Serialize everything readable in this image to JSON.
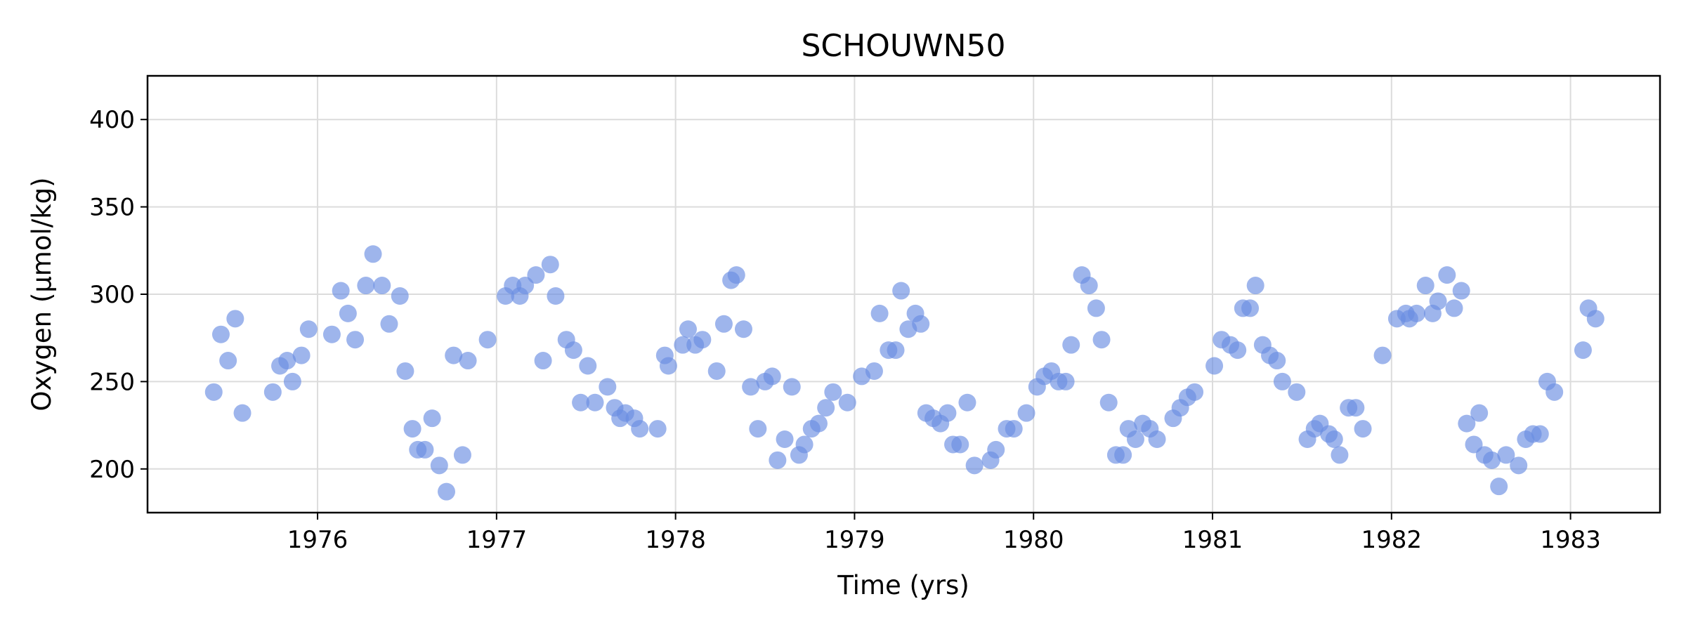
{
  "chart_data": {
    "type": "scatter",
    "title": "SCHOUWN50",
    "xlabel": "Time (yrs)",
    "ylabel": "Oxygen (µmol/kg)",
    "xlim": [
      1975.05,
      1983.5
    ],
    "ylim": [
      175,
      425
    ],
    "xticks": [
      1976,
      1977,
      1978,
      1979,
      1980,
      1981,
      1982,
      1983
    ],
    "xtick_labels": [
      "1976",
      "1977",
      "1978",
      "1979",
      "1980",
      "1981",
      "1982",
      "1983"
    ],
    "yticks": [
      200,
      250,
      300,
      350,
      400
    ],
    "ytick_labels": [
      "200",
      "250",
      "300",
      "350",
      "400"
    ],
    "grid": true,
    "marker_color": "#6a8ee2",
    "marker_opacity": 0.65,
    "points": [
      [
        1975.42,
        244
      ],
      [
        1975.46,
        277
      ],
      [
        1975.5,
        262
      ],
      [
        1975.54,
        286
      ],
      [
        1975.58,
        232
      ],
      [
        1975.75,
        244
      ],
      [
        1975.79,
        259
      ],
      [
        1975.83,
        262
      ],
      [
        1975.86,
        250
      ],
      [
        1975.91,
        265
      ],
      [
        1975.95,
        280
      ],
      [
        1976.08,
        277
      ],
      [
        1976.13,
        302
      ],
      [
        1976.17,
        289
      ],
      [
        1976.21,
        274
      ],
      [
        1976.27,
        305
      ],
      [
        1976.31,
        323
      ],
      [
        1976.36,
        305
      ],
      [
        1976.4,
        283
      ],
      [
        1976.46,
        299
      ],
      [
        1976.49,
        256
      ],
      [
        1976.53,
        223
      ],
      [
        1976.56,
        211
      ],
      [
        1976.6,
        211
      ],
      [
        1976.64,
        229
      ],
      [
        1976.68,
        202
      ],
      [
        1976.72,
        187
      ],
      [
        1976.76,
        265
      ],
      [
        1976.81,
        208
      ],
      [
        1976.84,
        262
      ],
      [
        1976.95,
        274
      ],
      [
        1977.05,
        299
      ],
      [
        1977.09,
        305
      ],
      [
        1977.13,
        299
      ],
      [
        1977.16,
        305
      ],
      [
        1977.22,
        311
      ],
      [
        1977.26,
        262
      ],
      [
        1977.3,
        317
      ],
      [
        1977.33,
        299
      ],
      [
        1977.39,
        274
      ],
      [
        1977.43,
        268
      ],
      [
        1977.47,
        238
      ],
      [
        1977.51,
        259
      ],
      [
        1977.55,
        238
      ],
      [
        1977.62,
        247
      ],
      [
        1977.66,
        235
      ],
      [
        1977.69,
        229
      ],
      [
        1977.72,
        232
      ],
      [
        1977.77,
        229
      ],
      [
        1977.8,
        223
      ],
      [
        1977.9,
        223
      ],
      [
        1977.94,
        265
      ],
      [
        1977.96,
        259
      ],
      [
        1978.04,
        271
      ],
      [
        1978.07,
        280
      ],
      [
        1978.11,
        271
      ],
      [
        1978.15,
        274
      ],
      [
        1978.23,
        256
      ],
      [
        1978.27,
        283
      ],
      [
        1978.31,
        308
      ],
      [
        1978.34,
        311
      ],
      [
        1978.38,
        280
      ],
      [
        1978.42,
        247
      ],
      [
        1978.46,
        223
      ],
      [
        1978.5,
        250
      ],
      [
        1978.54,
        253
      ],
      [
        1978.57,
        205
      ],
      [
        1978.61,
        217
      ],
      [
        1978.65,
        247
      ],
      [
        1978.69,
        208
      ],
      [
        1978.72,
        214
      ],
      [
        1978.76,
        223
      ],
      [
        1978.8,
        226
      ],
      [
        1978.84,
        235
      ],
      [
        1978.88,
        244
      ],
      [
        1978.96,
        238
      ],
      [
        1979.04,
        253
      ],
      [
        1979.11,
        256
      ],
      [
        1979.14,
        289
      ],
      [
        1979.19,
        268
      ],
      [
        1979.23,
        268
      ],
      [
        1979.26,
        302
      ],
      [
        1979.3,
        280
      ],
      [
        1979.34,
        289
      ],
      [
        1979.37,
        283
      ],
      [
        1979.4,
        232
      ],
      [
        1979.44,
        229
      ],
      [
        1979.48,
        226
      ],
      [
        1979.52,
        232
      ],
      [
        1979.55,
        214
      ],
      [
        1979.59,
        214
      ],
      [
        1979.63,
        238
      ],
      [
        1979.67,
        202
      ],
      [
        1979.76,
        205
      ],
      [
        1979.79,
        211
      ],
      [
        1979.85,
        223
      ],
      [
        1979.89,
        223
      ],
      [
        1979.96,
        232
      ],
      [
        1980.02,
        247
      ],
      [
        1980.06,
        253
      ],
      [
        1980.1,
        256
      ],
      [
        1980.14,
        250
      ],
      [
        1980.18,
        250
      ],
      [
        1980.21,
        271
      ],
      [
        1980.27,
        311
      ],
      [
        1980.31,
        305
      ],
      [
        1980.35,
        292
      ],
      [
        1980.38,
        274
      ],
      [
        1980.42,
        238
      ],
      [
        1980.46,
        208
      ],
      [
        1980.5,
        208
      ],
      [
        1980.53,
        223
      ],
      [
        1980.57,
        217
      ],
      [
        1980.61,
        226
      ],
      [
        1980.65,
        223
      ],
      [
        1980.69,
        217
      ],
      [
        1980.78,
        229
      ],
      [
        1980.82,
        235
      ],
      [
        1980.86,
        241
      ],
      [
        1980.9,
        244
      ],
      [
        1981.01,
        259
      ],
      [
        1981.05,
        274
      ],
      [
        1981.1,
        271
      ],
      [
        1981.14,
        268
      ],
      [
        1981.17,
        292
      ],
      [
        1981.21,
        292
      ],
      [
        1981.24,
        305
      ],
      [
        1981.28,
        271
      ],
      [
        1981.32,
        265
      ],
      [
        1981.36,
        262
      ],
      [
        1981.39,
        250
      ],
      [
        1981.47,
        244
      ],
      [
        1981.53,
        217
      ],
      [
        1981.57,
        223
      ],
      [
        1981.6,
        226
      ],
      [
        1981.65,
        220
      ],
      [
        1981.68,
        217
      ],
      [
        1981.71,
        208
      ],
      [
        1981.76,
        235
      ],
      [
        1981.8,
        235
      ],
      [
        1981.84,
        223
      ],
      [
        1981.95,
        265
      ],
      [
        1982.03,
        286
      ],
      [
        1982.08,
        289
      ],
      [
        1982.1,
        286
      ],
      [
        1982.14,
        289
      ],
      [
        1982.19,
        305
      ],
      [
        1982.23,
        289
      ],
      [
        1982.26,
        296
      ],
      [
        1982.31,
        311
      ],
      [
        1982.35,
        292
      ],
      [
        1982.39,
        302
      ],
      [
        1982.42,
        226
      ],
      [
        1982.46,
        214
      ],
      [
        1982.49,
        232
      ],
      [
        1982.52,
        208
      ],
      [
        1982.56,
        205
      ],
      [
        1982.6,
        190
      ],
      [
        1982.64,
        208
      ],
      [
        1982.71,
        202
      ],
      [
        1982.75,
        217
      ],
      [
        1982.79,
        220
      ],
      [
        1982.83,
        220
      ],
      [
        1982.87,
        250
      ],
      [
        1982.91,
        244
      ],
      [
        1983.07,
        268
      ],
      [
        1983.1,
        292
      ],
      [
        1983.14,
        286
      ]
    ]
  }
}
